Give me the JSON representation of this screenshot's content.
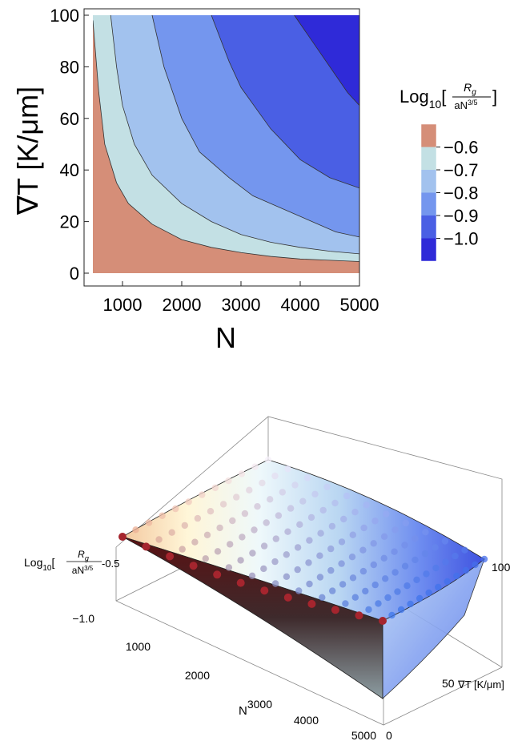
{
  "chart_data": [
    {
      "type": "contour",
      "xlabel": "N",
      "ylabel": "∇T  [K/μm]",
      "x_ticks": [
        "1000",
        "2000",
        "3000",
        "4000",
        "5000"
      ],
      "x_tick_values": [
        1000,
        2000,
        3000,
        4000,
        5000
      ],
      "y_ticks": [
        "0",
        "20",
        "40",
        "60",
        "80",
        "100"
      ],
      "y_tick_values": [
        0,
        20,
        40,
        60,
        80,
        100
      ],
      "xlim": [
        500,
        5000
      ],
      "ylim": [
        0,
        100
      ],
      "legend": {
        "title_prefix": "Log",
        "title_sub": "10",
        "title_num": "R",
        "title_num_sub": "g",
        "title_den": "aN",
        "title_den_sup": "3/5",
        "labels": [
          "−0.6",
          "−0.7",
          "−0.8",
          "−0.9",
          "−1.0"
        ],
        "colors": [
          "#d58e78",
          "#c3e0e4",
          "#a2c2ee",
          "#7496ee",
          "#4a5fe4",
          "#2f2ad8"
        ]
      },
      "contour_lines": [
        {
          "level": -0.6,
          "points": [
            [
              500,
              98
            ],
            [
              600,
              70
            ],
            [
              700,
              50
            ],
            [
              900,
              35
            ],
            [
              1100,
              27
            ],
            [
              1500,
              19
            ],
            [
              2000,
              13
            ],
            [
              2500,
              10
            ],
            [
              3000,
              8
            ],
            [
              3500,
              6.5
            ],
            [
              4000,
              5.5
            ],
            [
              4500,
              5
            ],
            [
              5000,
              4.5
            ]
          ]
        },
        {
          "level": -0.7,
          "points": [
            [
              800,
              100
            ],
            [
              900,
              80
            ],
            [
              1000,
              65
            ],
            [
              1200,
              50
            ],
            [
              1500,
              38
            ],
            [
              2000,
              27
            ],
            [
              2500,
              20
            ],
            [
              3000,
              15
            ],
            [
              3500,
              12
            ],
            [
              4000,
              10
            ],
            [
              4500,
              8.5
            ],
            [
              5000,
              7.5
            ]
          ]
        },
        {
          "level": -0.8,
          "points": [
            [
              1500,
              100
            ],
            [
              1700,
              80
            ],
            [
              2000,
              60
            ],
            [
              2300,
              47
            ],
            [
              2800,
              37
            ],
            [
              3200,
              30
            ],
            [
              3700,
              25
            ],
            [
              4200,
              20
            ],
            [
              4600,
              16
            ],
            [
              5000,
              14
            ]
          ]
        },
        {
          "level": -0.9,
          "points": [
            [
              2500,
              100
            ],
            [
              2800,
              82
            ],
            [
              3000,
              72
            ],
            [
              3500,
              56
            ],
            [
              4000,
              44
            ],
            [
              4500,
              37
            ],
            [
              5000,
              33
            ]
          ]
        },
        {
          "level": -1.0,
          "points": [
            [
              3900,
              100
            ],
            [
              4200,
              90
            ],
            [
              4500,
              80
            ],
            [
              4800,
              70
            ],
            [
              5000,
              65
            ]
          ]
        }
      ]
    },
    {
      "type": "surface3d",
      "xlabel": "N",
      "x_ticks": [
        "1000",
        "2000",
        "3000",
        "4000",
        "5000"
      ],
      "ylabel": "∇T [K/μm]",
      "y_ticks": [
        "0",
        "50",
        "100"
      ],
      "zlabel_prefix": "Log",
      "zlabel_sub": "10",
      "zlabel_num": "R",
      "zlabel_num_sub": "g",
      "zlabel_den": "aN",
      "zlabel_den_sup": "3/5",
      "z_ticks": [
        "-0.5",
        "−1.0"
      ]
    }
  ]
}
